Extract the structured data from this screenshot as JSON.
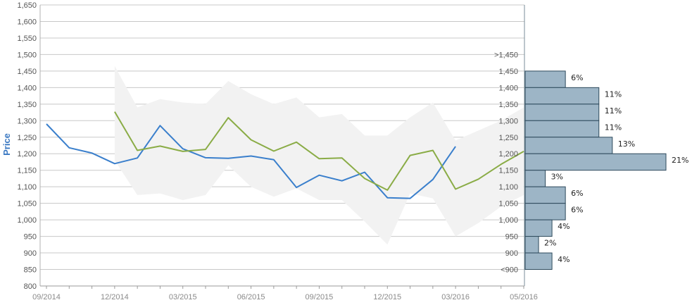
{
  "chart_data": {
    "type": "line",
    "ylabel": "Price",
    "ylim": [
      800,
      1650
    ],
    "y_ticks": [
      800,
      850,
      900,
      950,
      1000,
      1050,
      1100,
      1150,
      1200,
      1250,
      1300,
      1350,
      1400,
      1450,
      1500,
      1550,
      1600,
      1650
    ],
    "x_ticks": [
      {
        "label": "09/2014",
        "index": 0
      },
      {
        "label": "12/2014",
        "index": 3
      },
      {
        "label": "03/2015",
        "index": 6
      },
      {
        "label": "06/2015",
        "index": 9
      },
      {
        "label": "09/2015",
        "index": 12
      },
      {
        "label": "12/2015",
        "index": 15
      },
      {
        "label": "03/2016",
        "index": 18
      },
      {
        "label": "05/2016",
        "index": 21
      }
    ],
    "x_range": [
      0,
      21
    ],
    "grid": true,
    "colors": {
      "series_blue": "#3a7fcc",
      "series_green": "#8aac46",
      "band": "#f2f2f2",
      "histogram_fill": "#9db5c6",
      "histogram_stroke": "#2e4a5c",
      "axis_label": "#3a78c2"
    },
    "series": [
      {
        "values": [
          [
            0,
            1290
          ],
          [
            1,
            1218
          ],
          [
            2,
            1202
          ],
          [
            3,
            1170
          ],
          [
            4,
            1187
          ],
          [
            5,
            1285
          ],
          [
            6,
            1215
          ],
          [
            7,
            1188
          ],
          [
            8,
            1186
          ],
          [
            9,
            1193
          ],
          [
            10,
            1182
          ],
          [
            11,
            1098
          ],
          [
            12,
            1135
          ],
          [
            13,
            1118
          ],
          [
            14,
            1144
          ],
          [
            15,
            1067
          ],
          [
            16,
            1065
          ],
          [
            17,
            1122
          ],
          [
            18,
            1222
          ]
        ]
      },
      {
        "values": [
          [
            3,
            1327
          ],
          [
            4,
            1210
          ],
          [
            5,
            1223
          ],
          [
            6,
            1207
          ],
          [
            7,
            1213
          ],
          [
            8,
            1309
          ],
          [
            9,
            1242
          ],
          [
            10,
            1208
          ],
          [
            11,
            1235
          ],
          [
            12,
            1185
          ],
          [
            13,
            1187
          ],
          [
            14,
            1125
          ],
          [
            15,
            1090
          ],
          [
            16,
            1195
          ],
          [
            17,
            1210
          ],
          [
            18,
            1093
          ],
          [
            19,
            1123
          ],
          [
            20,
            1168
          ],
          [
            21,
            1207
          ]
        ]
      }
    ],
    "band": {
      "upper": [
        [
          3,
          1465
        ],
        [
          4,
          1340
        ],
        [
          5,
          1365
        ],
        [
          6,
          1355
        ],
        [
          7,
          1350
        ],
        [
          8,
          1420
        ],
        [
          9,
          1380
        ],
        [
          10,
          1350
        ],
        [
          11,
          1370
        ],
        [
          12,
          1310
        ],
        [
          13,
          1320
        ],
        [
          14,
          1255
        ],
        [
          15,
          1255
        ],
        [
          16,
          1310
        ],
        [
          17,
          1355
        ],
        [
          18,
          1240
        ],
        [
          19,
          1270
        ],
        [
          20,
          1300
        ],
        [
          21,
          1340
        ]
      ],
      "lower": [
        [
          3,
          1180
        ],
        [
          4,
          1075
        ],
        [
          5,
          1080
        ],
        [
          6,
          1060
        ],
        [
          7,
          1075
        ],
        [
          8,
          1165
        ],
        [
          9,
          1100
        ],
        [
          10,
          1070
        ],
        [
          11,
          1095
        ],
        [
          12,
          1060
        ],
        [
          13,
          1060
        ],
        [
          14,
          995
        ],
        [
          15,
          925
        ],
        [
          16,
          1080
        ],
        [
          17,
          1065
        ],
        [
          18,
          950
        ],
        [
          19,
          990
        ],
        [
          20,
          1040
        ],
        [
          21,
          1075
        ]
      ]
    },
    "distribution": {
      "labels": [
        ">1,450",
        "1,450",
        "1,400",
        "1,350",
        "1,300",
        "1,250",
        "1,200",
        "1,150",
        "1,100",
        "1,050",
        "1,000",
        "950",
        "900",
        "<900"
      ],
      "bins": [
        {
          "from": 1400,
          "to": 1450,
          "percent": 6,
          "label": "6%"
        },
        {
          "from": 1350,
          "to": 1400,
          "percent": 11,
          "label": "11%"
        },
        {
          "from": 1300,
          "to": 1350,
          "percent": 11,
          "label": "11%"
        },
        {
          "from": 1250,
          "to": 1300,
          "percent": 11,
          "label": "11%"
        },
        {
          "from": 1200,
          "to": 1250,
          "percent": 13,
          "label": "13%"
        },
        {
          "from": 1150,
          "to": 1200,
          "percent": 21,
          "label": "21%"
        },
        {
          "from": 1100,
          "to": 1150,
          "percent": 3,
          "label": "3%"
        },
        {
          "from": 1050,
          "to": 1100,
          "percent": 6,
          "label": "6%"
        },
        {
          "from": 1000,
          "to": 1050,
          "percent": 6,
          "label": "6%"
        },
        {
          "from": 950,
          "to": 1000,
          "percent": 4,
          "label": "4%"
        },
        {
          "from": 900,
          "to": 950,
          "percent": 2,
          "label": "2%"
        },
        {
          "from": 850,
          "to": 900,
          "percent": 4,
          "label": "4%"
        }
      ]
    }
  }
}
